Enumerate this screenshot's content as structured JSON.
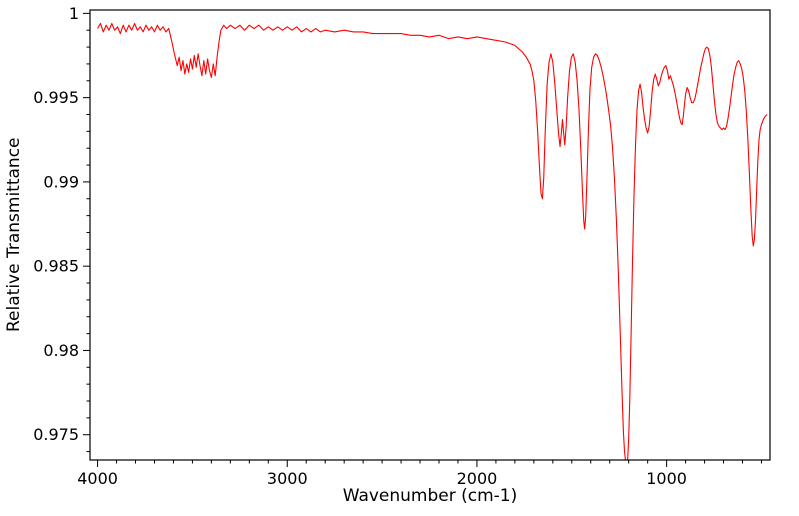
{
  "figure": {
    "background": "#ffffff"
  },
  "chart_data": {
    "type": "line",
    "title": "",
    "xlabel": "Wavenumber (cm-1)",
    "ylabel": "Relative Transmittance",
    "x_axis_reversed": true,
    "xlim": [
      4040,
      455
    ],
    "ylim": [
      0.9735,
      1.0002
    ],
    "grid": false,
    "legend": "none",
    "line_color": "#ff0000",
    "axis_color": "#000000",
    "x_ticks": [
      {
        "value": 4000,
        "label": "4000"
      },
      {
        "value": 3000,
        "label": "3000"
      },
      {
        "value": 2000,
        "label": "2000"
      },
      {
        "value": 1000,
        "label": "1000"
      }
    ],
    "y_ticks": [
      {
        "value": 0.975,
        "label": "0.975"
      },
      {
        "value": 0.98,
        "label": "0.98"
      },
      {
        "value": 0.985,
        "label": "0.985"
      },
      {
        "value": 0.99,
        "label": "0.99"
      },
      {
        "value": 0.995,
        "label": "0.995"
      },
      {
        "value": 1,
        "label": "1"
      }
    ],
    "x_minor_tick_step": 100,
    "y_minor_tick_step": 0.001,
    "series": [
      {
        "name": "IR transmittance spectrum",
        "points": [
          [
            4000,
            0.9991
          ],
          [
            3985,
            0.9994
          ],
          [
            3970,
            0.9989
          ],
          [
            3955,
            0.9993
          ],
          [
            3940,
            0.999
          ],
          [
            3925,
            0.9994
          ],
          [
            3910,
            0.999
          ],
          [
            3895,
            0.9992
          ],
          [
            3880,
            0.9988
          ],
          [
            3865,
            0.9993
          ],
          [
            3850,
            0.9989
          ],
          [
            3835,
            0.9993
          ],
          [
            3820,
            0.999
          ],
          [
            3805,
            0.9994
          ],
          [
            3790,
            0.999
          ],
          [
            3775,
            0.9992
          ],
          [
            3760,
            0.9989
          ],
          [
            3745,
            0.9993
          ],
          [
            3730,
            0.999
          ],
          [
            3715,
            0.9992
          ],
          [
            3700,
            0.9989
          ],
          [
            3685,
            0.9993
          ],
          [
            3670,
            0.999
          ],
          [
            3655,
            0.9992
          ],
          [
            3640,
            0.9989
          ],
          [
            3625,
            0.9991
          ],
          [
            3610,
            0.9984
          ],
          [
            3595,
            0.9976
          ],
          [
            3580,
            0.9969
          ],
          [
            3570,
            0.9974
          ],
          [
            3560,
            0.9966
          ],
          [
            3550,
            0.9972
          ],
          [
            3540,
            0.9964
          ],
          [
            3530,
            0.997
          ],
          [
            3520,
            0.9965
          ],
          [
            3510,
            0.9973
          ],
          [
            3500,
            0.9967
          ],
          [
            3490,
            0.9975
          ],
          [
            3480,
            0.9968
          ],
          [
            3470,
            0.9976
          ],
          [
            3460,
            0.9969
          ],
          [
            3450,
            0.9963
          ],
          [
            3440,
            0.9972
          ],
          [
            3430,
            0.9964
          ],
          [
            3420,
            0.9973
          ],
          [
            3410,
            0.9966
          ],
          [
            3400,
            0.9962
          ],
          [
            3390,
            0.997
          ],
          [
            3380,
            0.9963
          ],
          [
            3370,
            0.9974
          ],
          [
            3360,
            0.9983
          ],
          [
            3350,
            0.999
          ],
          [
            3335,
            0.9993
          ],
          [
            3320,
            0.9991
          ],
          [
            3300,
            0.9993
          ],
          [
            3275,
            0.9991
          ],
          [
            3250,
            0.9993
          ],
          [
            3225,
            0.999
          ],
          [
            3200,
            0.9993
          ],
          [
            3175,
            0.9991
          ],
          [
            3150,
            0.9993
          ],
          [
            3125,
            0.999
          ],
          [
            3100,
            0.9992
          ],
          [
            3075,
            0.999
          ],
          [
            3050,
            0.9992
          ],
          [
            3025,
            0.999
          ],
          [
            3000,
            0.9992
          ],
          [
            2975,
            0.999
          ],
          [
            2950,
            0.9992
          ],
          [
            2925,
            0.9989
          ],
          [
            2900,
            0.9991
          ],
          [
            2875,
            0.9989
          ],
          [
            2850,
            0.9991
          ],
          [
            2825,
            0.9989
          ],
          [
            2800,
            0.999
          ],
          [
            2750,
            0.9989
          ],
          [
            2700,
            0.999
          ],
          [
            2650,
            0.9989
          ],
          [
            2600,
            0.9989
          ],
          [
            2550,
            0.9988
          ],
          [
            2500,
            0.9988
          ],
          [
            2450,
            0.9988
          ],
          [
            2400,
            0.9988
          ],
          [
            2350,
            0.9987
          ],
          [
            2300,
            0.9987
          ],
          [
            2250,
            0.9986
          ],
          [
            2200,
            0.9987
          ],
          [
            2150,
            0.9985
          ],
          [
            2100,
            0.9986
          ],
          [
            2050,
            0.9985
          ],
          [
            2000,
            0.9986
          ],
          [
            1950,
            0.9985
          ],
          [
            1900,
            0.9984
          ],
          [
            1850,
            0.9983
          ],
          [
            1800,
            0.9981
          ],
          [
            1780,
            0.9979
          ],
          [
            1760,
            0.9977
          ],
          [
            1740,
            0.9974
          ],
          [
            1720,
            0.997
          ],
          [
            1710,
            0.9966
          ],
          [
            1700,
            0.996
          ],
          [
            1690,
            0.9948
          ],
          [
            1680,
            0.993
          ],
          [
            1670,
            0.9908
          ],
          [
            1662,
            0.9893
          ],
          [
            1655,
            0.989
          ],
          [
            1648,
            0.9902
          ],
          [
            1640,
            0.993
          ],
          [
            1630,
            0.9958
          ],
          [
            1620,
            0.9971
          ],
          [
            1610,
            0.9976
          ],
          [
            1600,
            0.9971
          ],
          [
            1590,
            0.9959
          ],
          [
            1580,
            0.9944
          ],
          [
            1570,
            0.9929
          ],
          [
            1562,
            0.9921
          ],
          [
            1555,
            0.9929
          ],
          [
            1549,
            0.9937
          ],
          [
            1543,
            0.9929
          ],
          [
            1537,
            0.9922
          ],
          [
            1530,
            0.9932
          ],
          [
            1522,
            0.995
          ],
          [
            1512,
            0.9966
          ],
          [
            1502,
            0.9974
          ],
          [
            1492,
            0.9976
          ],
          [
            1482,
            0.9971
          ],
          [
            1472,
            0.996
          ],
          [
            1462,
            0.9943
          ],
          [
            1452,
            0.9918
          ],
          [
            1444,
            0.9895
          ],
          [
            1437,
            0.9877
          ],
          [
            1432,
            0.9872
          ],
          [
            1427,
            0.9879
          ],
          [
            1420,
            0.9902
          ],
          [
            1412,
            0.9932
          ],
          [
            1404,
            0.9955
          ],
          [
            1395,
            0.9968
          ],
          [
            1385,
            0.9974
          ],
          [
            1375,
            0.9976
          ],
          [
            1365,
            0.9975
          ],
          [
            1355,
            0.9972
          ],
          [
            1345,
            0.9968
          ],
          [
            1335,
            0.9963
          ],
          [
            1325,
            0.9957
          ],
          [
            1315,
            0.995
          ],
          [
            1305,
            0.9942
          ],
          [
            1295,
            0.9933
          ],
          [
            1285,
            0.992
          ],
          [
            1275,
            0.9902
          ],
          [
            1265,
            0.9878
          ],
          [
            1255,
            0.9848
          ],
          [
            1245,
            0.9812
          ],
          [
            1235,
            0.9775
          ],
          [
            1228,
            0.9752
          ],
          [
            1222,
            0.974
          ],
          [
            1216,
            0.9734
          ],
          [
            1210,
            0.9731
          ],
          [
            1205,
            0.9736
          ],
          [
            1200,
            0.9748
          ],
          [
            1194,
            0.9772
          ],
          [
            1188,
            0.9806
          ],
          [
            1180,
            0.9852
          ],
          [
            1172,
            0.9892
          ],
          [
            1164,
            0.9922
          ],
          [
            1156,
            0.9943
          ],
          [
            1148,
            0.9954
          ],
          [
            1140,
            0.9958
          ],
          [
            1132,
            0.9953
          ],
          [
            1124,
            0.9944
          ],
          [
            1116,
            0.9937
          ],
          [
            1108,
            0.9932
          ],
          [
            1100,
            0.9929
          ],
          [
            1092,
            0.9933
          ],
          [
            1084,
            0.9943
          ],
          [
            1076,
            0.9954
          ],
          [
            1068,
            0.9961
          ],
          [
            1060,
            0.9964
          ],
          [
            1052,
            0.9961
          ],
          [
            1044,
            0.9957
          ],
          [
            1036,
            0.9959
          ],
          [
            1028,
            0.9963
          ],
          [
            1020,
            0.9966
          ],
          [
            1012,
            0.9968
          ],
          [
            1004,
            0.9969
          ],
          [
            996,
            0.9966
          ],
          [
            988,
            0.9961
          ],
          [
            980,
            0.9963
          ],
          [
            972,
            0.996
          ],
          [
            964,
            0.9957
          ],
          [
            956,
            0.9953
          ],
          [
            948,
            0.9948
          ],
          [
            940,
            0.9943
          ],
          [
            932,
            0.9938
          ],
          [
            925,
            0.9935
          ],
          [
            918,
            0.9934
          ],
          [
            912,
            0.9939
          ],
          [
            906,
            0.9946
          ],
          [
            900,
            0.9952
          ],
          [
            892,
            0.9956
          ],
          [
            884,
            0.9954
          ],
          [
            876,
            0.995
          ],
          [
            868,
            0.9947
          ],
          [
            860,
            0.9947
          ],
          [
            852,
            0.9949
          ],
          [
            844,
            0.9953
          ],
          [
            836,
            0.9958
          ],
          [
            828,
            0.9963
          ],
          [
            820,
            0.9968
          ],
          [
            812,
            0.9972
          ],
          [
            804,
            0.9976
          ],
          [
            796,
            0.9979
          ],
          [
            788,
            0.998
          ],
          [
            780,
            0.9979
          ],
          [
            772,
            0.9975
          ],
          [
            764,
            0.9968
          ],
          [
            756,
            0.9958
          ],
          [
            748,
            0.9948
          ],
          [
            740,
            0.994
          ],
          [
            732,
            0.9935
          ],
          [
            724,
            0.9933
          ],
          [
            716,
            0.9932
          ],
          [
            708,
            0.9931
          ],
          [
            700,
            0.9932
          ],
          [
            692,
            0.9931
          ],
          [
            684,
            0.9933
          ],
          [
            676,
            0.9938
          ],
          [
            668,
            0.9944
          ],
          [
            660,
            0.9951
          ],
          [
            652,
            0.9958
          ],
          [
            644,
            0.9964
          ],
          [
            636,
            0.9968
          ],
          [
            628,
            0.9971
          ],
          [
            620,
            0.9972
          ],
          [
            612,
            0.997
          ],
          [
            604,
            0.9967
          ],
          [
            596,
            0.9962
          ],
          [
            588,
            0.9954
          ],
          [
            580,
            0.9942
          ],
          [
            572,
            0.9926
          ],
          [
            564,
            0.9906
          ],
          [
            556,
            0.9884
          ],
          [
            549,
            0.9868
          ],
          [
            543,
            0.9862
          ],
          [
            537,
            0.9866
          ],
          [
            531,
            0.9878
          ],
          [
            525,
            0.9896
          ],
          [
            519,
            0.9913
          ],
          [
            513,
            0.9925
          ],
          [
            507,
            0.9931
          ],
          [
            500,
            0.9934
          ],
          [
            490,
            0.9937
          ],
          [
            480,
            0.9939
          ],
          [
            470,
            0.994
          ]
        ]
      }
    ]
  }
}
